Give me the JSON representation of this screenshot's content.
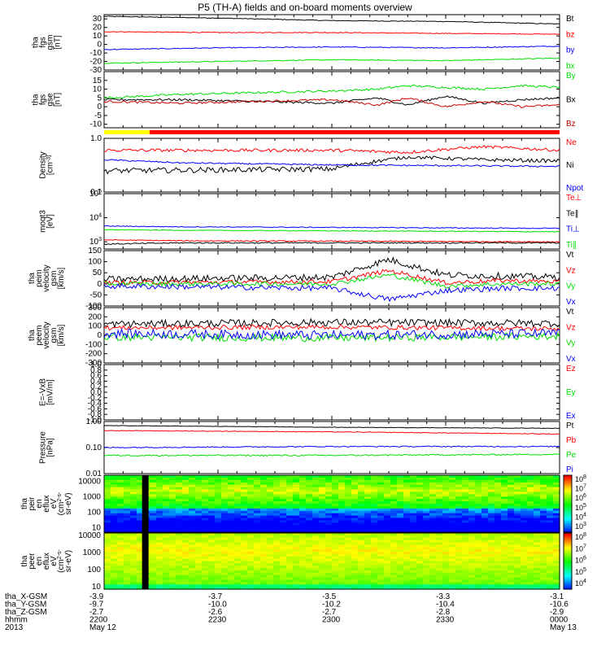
{
  "title": "P5 (TH-A) fields and on-board moments overview",
  "chart_data": [
    {
      "type": "line",
      "panel": "fgs_gsm",
      "ylabel": [
        "tha",
        "fgs",
        "gsm",
        "[nT]"
      ],
      "ylim": [
        -30,
        35
      ],
      "ticks": [
        30,
        20,
        10,
        0,
        -10,
        -20,
        -30
      ],
      "log": false,
      "series": [
        {
          "name": "Bt",
          "color": "#000000",
          "x": [
            0,
            30,
            60,
            90,
            120
          ],
          "y": [
            33,
            31,
            28,
            27,
            24
          ],
          "noise": 0.4
        },
        {
          "name": "bz",
          "color": "#ff0000",
          "x": [
            0,
            30,
            60,
            90,
            120
          ],
          "y": [
            15,
            14,
            14,
            13,
            12
          ],
          "noise": 0.4
        },
        {
          "name": "by",
          "color": "#0000ff",
          "x": [
            0,
            30,
            60,
            90,
            120
          ],
          "y": [
            -6,
            -4,
            -3,
            -4,
            -2
          ],
          "noise": 0.5
        },
        {
          "name": "bx",
          "color": "#00dd00",
          "x": [
            0,
            30,
            60,
            90,
            120
          ],
          "y": [
            -22,
            -20,
            -18,
            -19,
            -16
          ],
          "noise": 0.5
        }
      ]
    },
    {
      "type": "line",
      "panel": "fgs_gse_detrended",
      "ylabel": [
        "tha",
        "fgs",
        "gse",
        "[nT]"
      ],
      "ylim": [
        -12,
        20
      ],
      "ticks": [
        15,
        10,
        5,
        0,
        -5,
        -10
      ],
      "log": false,
      "series": [
        {
          "name": "By",
          "color": "#00dd00",
          "x": [
            0,
            20,
            40,
            60,
            72,
            80,
            90,
            100,
            110,
            120
          ],
          "y": [
            5,
            7,
            8,
            9,
            10,
            12,
            11,
            10,
            12,
            11
          ],
          "noise": 0.6
        },
        {
          "name": "Bx",
          "color": "#000000",
          "x": [
            0,
            20,
            40,
            60,
            72,
            80,
            90,
            100,
            110,
            120
          ],
          "y": [
            4,
            4,
            3,
            2,
            5,
            1,
            6,
            2,
            4,
            5
          ],
          "noise": 0.6
        },
        {
          "name": "Bz",
          "color": "#cc0000",
          "x": [
            0,
            20,
            40,
            60,
            72,
            80,
            90,
            100,
            110,
            120
          ],
          "y": [
            3,
            2,
            3,
            4,
            1,
            5,
            0,
            3,
            0,
            1
          ],
          "noise": 0.6
        }
      ]
    },
    {
      "type": "line",
      "panel": "density",
      "ylabel": [
        "Density",
        "[cm^-3]"
      ],
      "ylim": [
        0.1,
        1.0
      ],
      "ticks": [
        "1.0",
        "0.1"
      ],
      "log": true,
      "series": [
        {
          "name": "Ne",
          "color": "#ff0000",
          "x": [
            0,
            60,
            80,
            100,
            120
          ],
          "y": [
            0.6,
            0.6,
            0.55,
            0.7,
            0.6
          ],
          "noise": 0.04
        },
        {
          "name": "Ni",
          "color": "#000000",
          "x": [
            0,
            60,
            80,
            100,
            120
          ],
          "y": [
            0.25,
            0.27,
            0.45,
            0.4,
            0.38
          ],
          "noise": 0.03
        },
        {
          "name": "Npot",
          "color": "#0000ff",
          "x": [
            0,
            20,
            60,
            120
          ],
          "y": [
            0.4,
            0.35,
            0.32,
            0.3
          ],
          "noise": 0.01
        }
      ],
      "legend_extra": [
        "Npot"
      ]
    },
    {
      "type": "line",
      "panel": "temperature",
      "ylabel": [
        "moqt3",
        "[eV]"
      ],
      "ylim": [
        500,
        100000
      ],
      "ticks": [
        "10^5",
        "10^4",
        "10^3"
      ],
      "log": true,
      "series": [
        {
          "name": "Te⊥",
          "color": "#ff0000",
          "x": [
            0,
            20,
            120
          ],
          "y": [
            1200,
            1100,
            1000
          ],
          "noise": 50
        },
        {
          "name": "Te∥",
          "color": "#000000",
          "x": [
            0,
            20,
            120
          ],
          "y": [
            800,
            900,
            900
          ],
          "noise": 50
        },
        {
          "name": "Ti⊥",
          "color": "#0000ff",
          "x": [
            0,
            20,
            120
          ],
          "y": [
            4500,
            4200,
            3600
          ],
          "noise": 150
        },
        {
          "name": "Ti∥",
          "color": "#00dd00",
          "x": [
            0,
            20,
            120
          ],
          "y": [
            3200,
            3000,
            2600
          ],
          "noise": 100
        }
      ]
    },
    {
      "type": "line",
      "panel": "peim_velocity",
      "ylabel": [
        "tha",
        "peim",
        "velocity",
        "gsm",
        "[km/s]"
      ],
      "ylim": [
        -100,
        150
      ],
      "ticks": [
        150,
        100,
        50,
        0,
        -50,
        -100
      ],
      "log": false,
      "series": [
        {
          "name": "Vt",
          "color": "#000000",
          "x": [
            0,
            60,
            75,
            90,
            105,
            120
          ],
          "y": [
            20,
            30,
            110,
            40,
            35,
            30
          ],
          "noise": 15
        },
        {
          "name": "Vz",
          "color": "#ff0000",
          "x": [
            0,
            60,
            75,
            90,
            105,
            120
          ],
          "y": [
            5,
            10,
            60,
            5,
            15,
            10
          ],
          "noise": 10
        },
        {
          "name": "Vy",
          "color": "#00dd00",
          "x": [
            0,
            60,
            75,
            90,
            105,
            120
          ],
          "y": [
            0,
            0,
            40,
            -10,
            0,
            0
          ],
          "noise": 10
        },
        {
          "name": "Vx",
          "color": "#0000ff",
          "x": [
            0,
            60,
            75,
            90,
            105,
            120
          ],
          "y": [
            -10,
            -20,
            -70,
            -30,
            -20,
            -20
          ],
          "noise": 12
        }
      ]
    },
    {
      "type": "line",
      "panel": "peem_velocity",
      "ylabel": [
        "tha",
        "peem",
        "velocity",
        "gsm",
        "[km/s]"
      ],
      "ylim": [
        -300,
        300
      ],
      "ticks": [
        300,
        200,
        100,
        0,
        -100,
        -200,
        -300
      ],
      "log": false,
      "series": [
        {
          "name": "Vt",
          "color": "#000000",
          "x": [
            0,
            60,
            120
          ],
          "y": [
            120,
            140,
            130
          ],
          "noise": 40
        },
        {
          "name": "Vz",
          "color": "#ff0000",
          "x": [
            0,
            60,
            120
          ],
          "y": [
            80,
            90,
            70
          ],
          "noise": 25
        },
        {
          "name": "Vy",
          "color": "#00dd00",
          "x": [
            0,
            60,
            120
          ],
          "y": [
            -20,
            -30,
            -10
          ],
          "noise": 40
        },
        {
          "name": "Vx",
          "color": "#0000ff",
          "x": [
            0,
            60,
            120
          ],
          "y": [
            20,
            0,
            20
          ],
          "noise": 50
        }
      ]
    },
    {
      "type": "line",
      "panel": "efield",
      "ylabel": [
        "E=-VxB",
        "[mV/m]"
      ],
      "ylim": [
        -1.0,
        1.0
      ],
      "ticks": [
        "1.0",
        "0.8",
        "0.6",
        "0.4",
        "0.2",
        "0.0",
        "-0.2",
        "-0.4",
        "-0.6",
        "-0.8",
        "-1.0"
      ],
      "log": false,
      "series": [
        {
          "name": "Ez",
          "color": "#ff0000",
          "x": [],
          "y": []
        },
        {
          "name": "Ey",
          "color": "#00dd00",
          "x": [],
          "y": []
        },
        {
          "name": "Ex",
          "color": "#0000ff",
          "x": [],
          "y": []
        }
      ]
    },
    {
      "type": "line",
      "panel": "pressure",
      "ylabel": [
        "Pressure",
        "[nPa]"
      ],
      "ylim": [
        0.01,
        1.0
      ],
      "ticks": [
        "1.00",
        "0.10",
        "0.01"
      ],
      "log": true,
      "series": [
        {
          "name": "Pt",
          "color": "#000000",
          "x": [
            0,
            60,
            120
          ],
          "y": [
            0.7,
            0.6,
            0.55
          ],
          "noise": 0.01
        },
        {
          "name": "Pb",
          "color": "#ff0000",
          "x": [
            0,
            60,
            120
          ],
          "y": [
            0.45,
            0.4,
            0.33
          ],
          "noise": 0.01
        },
        {
          "name": "Pe",
          "color": "#00dd00",
          "x": [
            0,
            60,
            120
          ],
          "y": [
            0.05,
            0.05,
            0.055
          ],
          "noise": 0.003
        },
        {
          "name": "Pi",
          "color": "#0000ff",
          "x": [
            0,
            60,
            120
          ],
          "y": [
            0.1,
            0.11,
            0.11
          ],
          "noise": 0.005
        }
      ]
    },
    {
      "type": "heatmap",
      "panel": "peir_spectrogram",
      "ylabel": [
        "tha",
        "peir",
        "en",
        "eflux",
        "eV",
        "(cm^2-s-",
        "sr-eV)"
      ],
      "ylim": [
        5,
        25000
      ],
      "ticks": [
        "10000",
        "1000",
        "100",
        "10"
      ],
      "colorbar_ticks": [
        "10^8",
        "10^7",
        "10^6",
        "10^5",
        "10^4",
        "10^3"
      ]
    },
    {
      "type": "heatmap",
      "panel": "peer_spectrogram",
      "ylabel": [
        "tha",
        "peer",
        "en",
        "eflux",
        "eV",
        "(cm^2-s-",
        "sr-eV)"
      ],
      "ylim": [
        7,
        14000
      ],
      "ticks": [
        "10000",
        "1000",
        "100",
        "10"
      ],
      "colorbar_ticks": [
        "10^8",
        "10^7",
        "10^6",
        "10^5",
        "10^4"
      ]
    }
  ],
  "mode_bar": {
    "colors": [
      "#ffff00",
      "#ff0000"
    ]
  },
  "x_axis": {
    "row_labels": [
      "tha_X-GSM",
      "tha_Y-GSM",
      "tha_Z-GSM",
      "hhmm",
      "2013"
    ],
    "columns": [
      {
        "values": [
          "-3.9",
          "-9.7",
          "-2.7",
          "2200",
          "May 12"
        ]
      },
      {
        "values": [
          "-3.7",
          "-10.0",
          "-2.6",
          "2230",
          ""
        ]
      },
      {
        "values": [
          "-3.5",
          "-10.2",
          "-2.7",
          "2300",
          ""
        ]
      },
      {
        "values": [
          "-3.3",
          "-10.4",
          "-2.8",
          "2330",
          ""
        ]
      },
      {
        "values": [
          "-3.1",
          "-10.6",
          "-2.9",
          "0000",
          "May 13"
        ]
      }
    ]
  }
}
